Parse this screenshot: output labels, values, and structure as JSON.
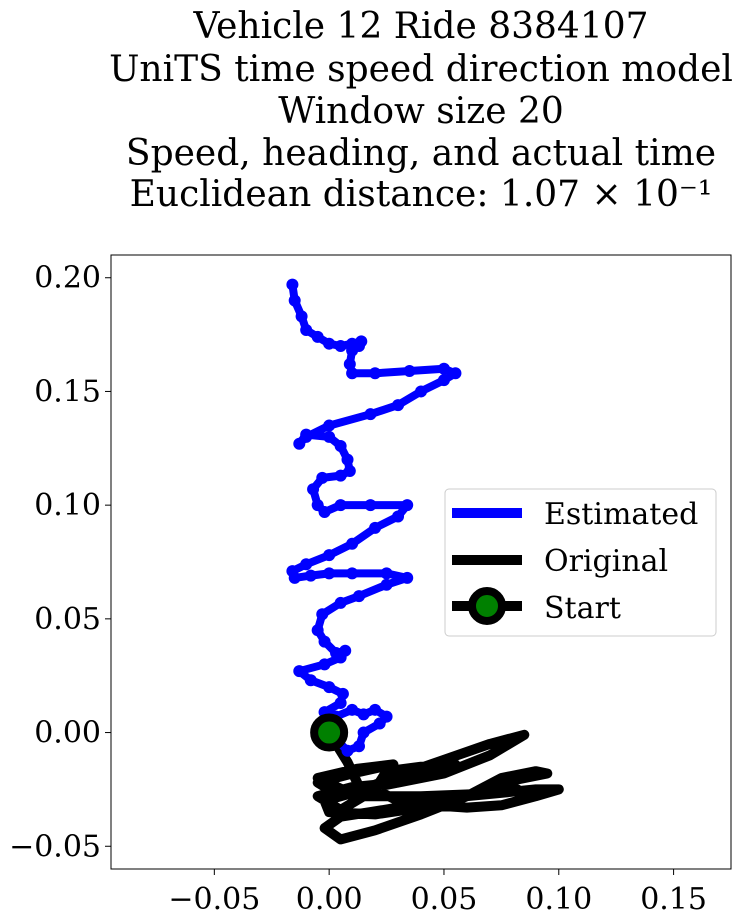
{
  "chart_data": {
    "type": "line",
    "title_lines": [
      "Vehicle 12 Ride 8384107",
      "UniTS time speed direction model",
      "Window size 20",
      "Speed, heading, and actual time",
      "Euclidean distance: 1.07 × 10⁻¹"
    ],
    "xlabel": "",
    "ylabel": "",
    "xlim": [
      -0.095,
      0.175
    ],
    "ylim": [
      -0.06,
      0.21
    ],
    "xticks": [
      -0.05,
      0.0,
      0.05,
      0.1,
      0.15
    ],
    "xtick_labels": [
      "−0.05",
      "0.00",
      "0.05",
      "0.10",
      "0.15"
    ],
    "yticks": [
      -0.05,
      0.0,
      0.05,
      0.1,
      0.15,
      0.2
    ],
    "ytick_labels": [
      "−0.05",
      "0.00",
      "0.05",
      "0.10",
      "0.15",
      "0.20"
    ],
    "grid": false,
    "legend_position": "center-right",
    "series": [
      {
        "name": "Estimated",
        "color": "#0000ff",
        "points": [
          [
            -0.016,
            0.197
          ],
          [
            -0.015,
            0.19
          ],
          [
            -0.012,
            0.183
          ],
          [
            -0.01,
            0.177
          ],
          [
            -0.005,
            0.174
          ],
          [
            0.0,
            0.171
          ],
          [
            0.005,
            0.17
          ],
          [
            0.01,
            0.171
          ],
          [
            0.014,
            0.172
          ],
          [
            0.013,
            0.17
          ],
          [
            0.01,
            0.168
          ],
          [
            0.009,
            0.162
          ],
          [
            0.01,
            0.158
          ],
          [
            0.02,
            0.158
          ],
          [
            0.035,
            0.159
          ],
          [
            0.05,
            0.16
          ],
          [
            0.055,
            0.158
          ],
          [
            0.05,
            0.155
          ],
          [
            0.04,
            0.15
          ],
          [
            0.03,
            0.144
          ],
          [
            0.018,
            0.14
          ],
          [
            0.0,
            0.135
          ],
          [
            -0.01,
            0.13
          ],
          [
            -0.013,
            0.127
          ],
          [
            -0.01,
            0.131
          ],
          [
            0.0,
            0.13
          ],
          [
            0.005,
            0.126
          ],
          [
            0.008,
            0.12
          ],
          [
            0.009,
            0.115
          ],
          [
            0.005,
            0.113
          ],
          [
            -0.003,
            0.112
          ],
          [
            -0.007,
            0.107
          ],
          [
            -0.005,
            0.1
          ],
          [
            -0.002,
            0.097
          ],
          [
            0.005,
            0.1
          ],
          [
            0.018,
            0.1
          ],
          [
            0.034,
            0.1
          ],
          [
            0.03,
            0.095
          ],
          [
            0.02,
            0.09
          ],
          [
            0.01,
            0.083
          ],
          [
            0.0,
            0.078
          ],
          [
            -0.01,
            0.074
          ],
          [
            -0.016,
            0.071
          ],
          [
            -0.015,
            0.068
          ],
          [
            -0.008,
            0.069
          ],
          [
            0.0,
            0.07
          ],
          [
            0.01,
            0.07
          ],
          [
            0.025,
            0.07
          ],
          [
            0.034,
            0.068
          ],
          [
            0.025,
            0.065
          ],
          [
            0.013,
            0.06
          ],
          [
            0.005,
            0.057
          ],
          [
            -0.003,
            0.052
          ],
          [
            -0.005,
            0.045
          ],
          [
            -0.002,
            0.04
          ],
          [
            0.003,
            0.035
          ],
          [
            0.007,
            0.036
          ],
          [
            0.005,
            0.033
          ],
          [
            -0.002,
            0.03
          ],
          [
            -0.013,
            0.027
          ],
          [
            -0.008,
            0.023
          ],
          [
            0.0,
            0.02
          ],
          [
            0.006,
            0.017
          ],
          [
            0.005,
            0.013
          ],
          [
            -0.002,
            0.009
          ],
          [
            0.003,
            0.007
          ],
          [
            0.01,
            0.01
          ],
          [
            0.015,
            0.008
          ],
          [
            0.02,
            0.01
          ],
          [
            0.025,
            0.007
          ],
          [
            0.022,
            0.004
          ],
          [
            0.015,
            0.0
          ],
          [
            0.013,
            -0.006
          ],
          [
            0.008,
            -0.008
          ],
          [
            0.0,
            0.0
          ]
        ]
      },
      {
        "name": "Original",
        "color": "#000000",
        "points": [
          [
            0.0,
            0.0
          ],
          [
            0.008,
            -0.013
          ],
          [
            0.015,
            -0.028
          ],
          [
            0.005,
            -0.034
          ],
          [
            -0.005,
            -0.028
          ],
          [
            0.01,
            -0.024
          ],
          [
            0.03,
            -0.022
          ],
          [
            0.05,
            -0.018
          ],
          [
            0.07,
            -0.01
          ],
          [
            0.085,
            -0.001
          ],
          [
            0.07,
            -0.005
          ],
          [
            0.05,
            -0.012
          ],
          [
            0.03,
            -0.019
          ],
          [
            0.012,
            -0.026
          ],
          [
            -0.002,
            -0.03
          ],
          [
            0.0,
            -0.035
          ],
          [
            0.02,
            -0.036
          ],
          [
            0.04,
            -0.033
          ],
          [
            0.06,
            -0.028
          ],
          [
            0.08,
            -0.021
          ],
          [
            0.095,
            -0.018
          ],
          [
            0.09,
            -0.017
          ],
          [
            0.075,
            -0.02
          ],
          [
            0.06,
            -0.028
          ],
          [
            0.04,
            -0.036
          ],
          [
            0.02,
            -0.043
          ],
          [
            0.005,
            -0.047
          ],
          [
            -0.002,
            -0.042
          ],
          [
            0.005,
            -0.037
          ],
          [
            0.018,
            -0.035
          ],
          [
            0.03,
            -0.033
          ],
          [
            0.045,
            -0.032
          ],
          [
            0.06,
            -0.033
          ],
          [
            0.075,
            -0.032
          ],
          [
            0.09,
            -0.028
          ],
          [
            0.1,
            -0.025
          ],
          [
            0.09,
            -0.025
          ],
          [
            0.06,
            -0.028
          ],
          [
            0.03,
            -0.03
          ],
          [
            0.02,
            -0.025
          ],
          [
            0.025,
            -0.017
          ],
          [
            0.04,
            -0.015
          ],
          [
            0.055,
            -0.014
          ],
          [
            0.042,
            -0.017
          ],
          [
            0.03,
            -0.022
          ],
          [
            0.015,
            -0.025
          ],
          [
            0.0,
            -0.025
          ],
          [
            -0.005,
            -0.022
          ],
          [
            0.01,
            -0.018
          ],
          [
            0.028,
            -0.014
          ],
          [
            0.012,
            -0.016
          ],
          [
            -0.005,
            -0.02
          ],
          [
            0.012,
            -0.028
          ],
          [
            0.04,
            -0.028
          ],
          [
            0.065,
            -0.027
          ],
          [
            0.082,
            -0.025
          ]
        ]
      },
      {
        "name": "Start",
        "color": "#000000",
        "marker_face": "#008000",
        "points": [
          [
            0.0,
            0.0
          ]
        ]
      }
    ]
  }
}
